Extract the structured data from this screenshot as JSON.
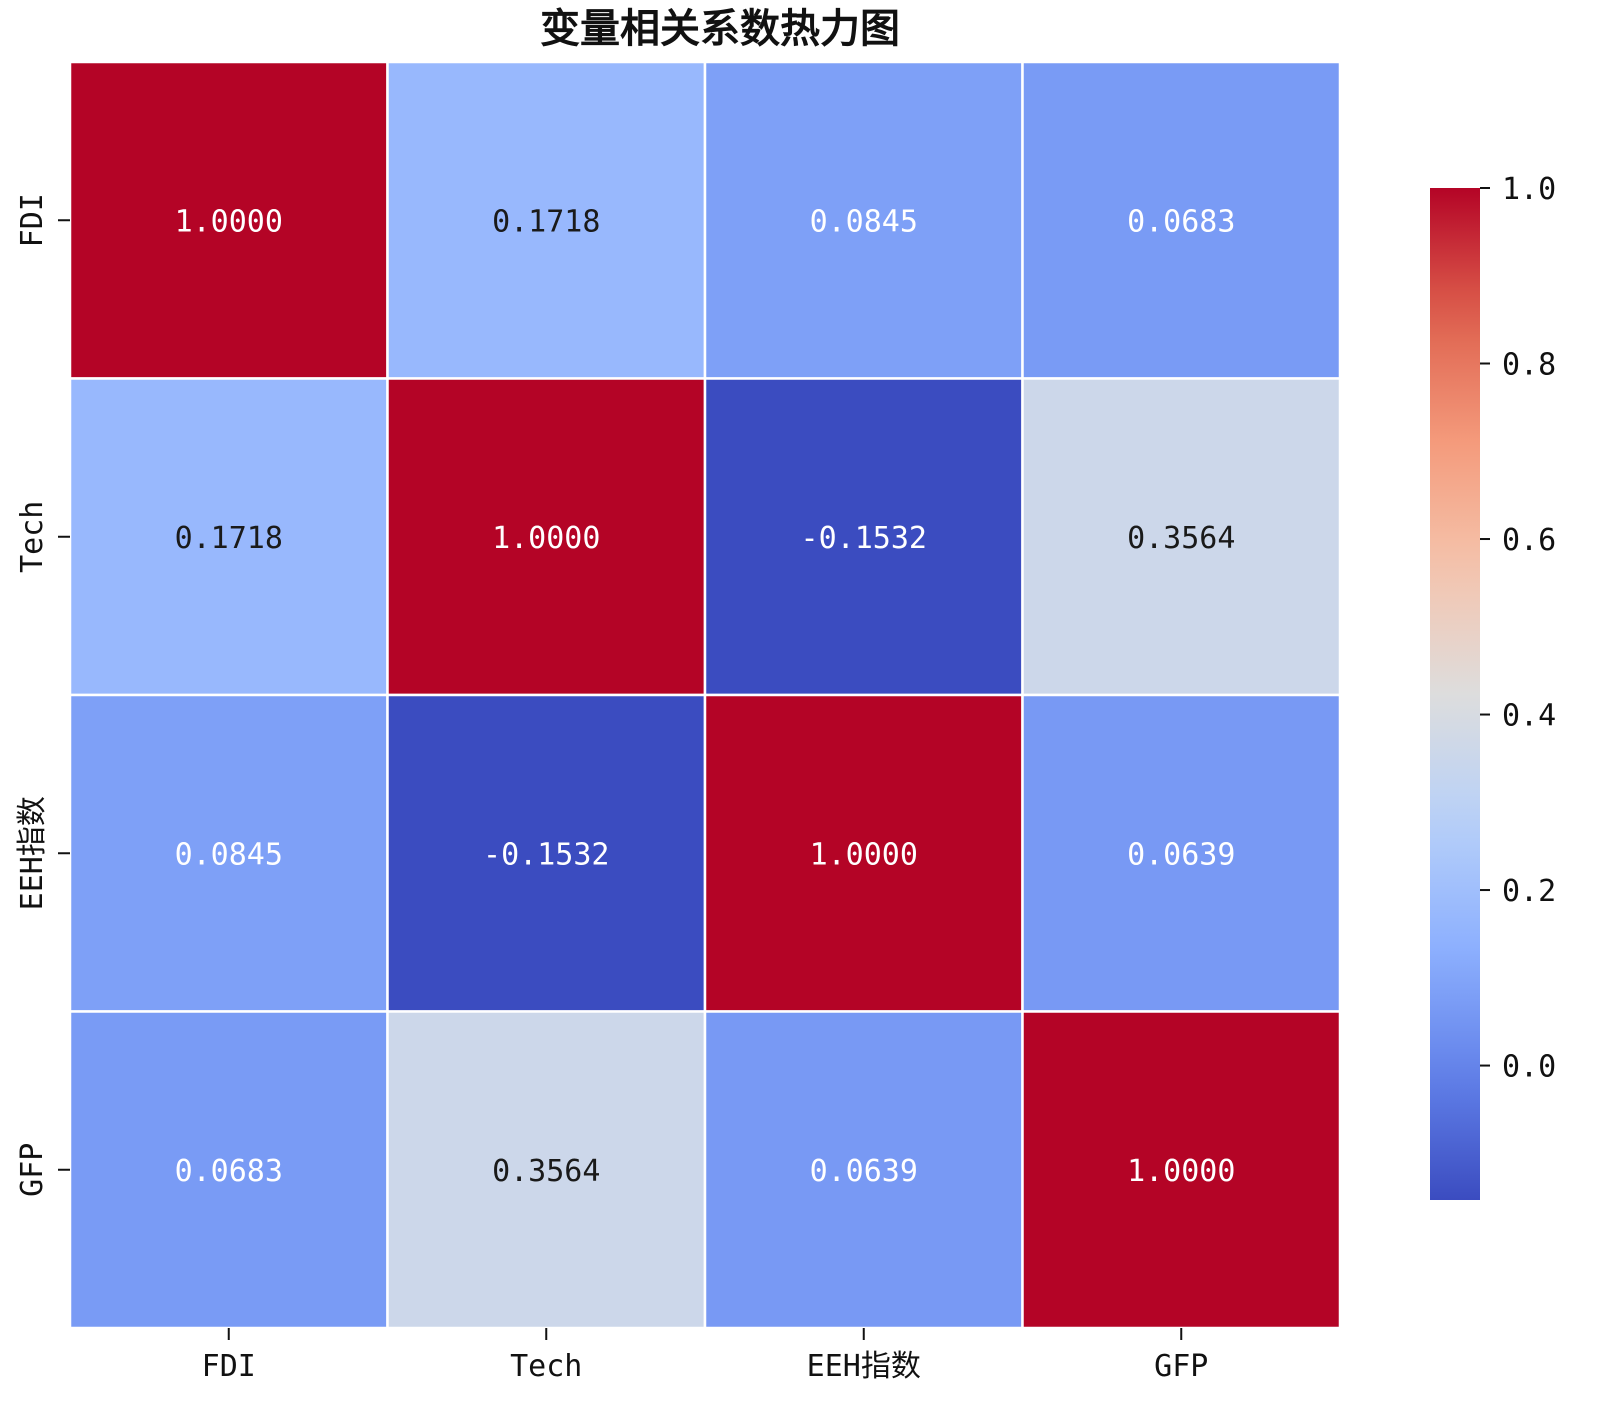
{
  "chart_data": {
    "type": "heatmap",
    "title": "变量相关系数热力图",
    "x_categories": [
      "FDI",
      "Tech",
      "EEH指数",
      "GFP"
    ],
    "y_categories": [
      "FDI",
      "Tech",
      "EEH指数",
      "GFP"
    ],
    "values": [
      [
        1.0,
        0.1718,
        0.0845,
        0.0683
      ],
      [
        0.1718,
        1.0,
        -0.1532,
        0.3564
      ],
      [
        0.0845,
        -0.1532,
        1.0,
        0.0639
      ],
      [
        0.0683,
        0.3564,
        0.0639,
        1.0
      ]
    ],
    "cell_labels": [
      [
        "1.0000",
        "0.1718",
        "0.0845",
        "0.0683"
      ],
      [
        "0.1718",
        "1.0000",
        "-0.1532",
        "0.3564"
      ],
      [
        "0.0845",
        "-0.1532",
        "1.0000",
        "0.0639"
      ],
      [
        "0.0683",
        "0.3564",
        "0.0639",
        "1.0000"
      ]
    ],
    "colormap": "coolwarm",
    "colorbar": {
      "vmin": -0.1532,
      "vmax": 1.0,
      "ticks": [
        0.0,
        0.2,
        0.4,
        0.6,
        0.8,
        1.0
      ],
      "tick_labels": [
        "0.0",
        "0.2",
        "0.4",
        "0.6",
        "0.8",
        "1.0"
      ]
    },
    "grid_line_color": "#ffffff"
  }
}
